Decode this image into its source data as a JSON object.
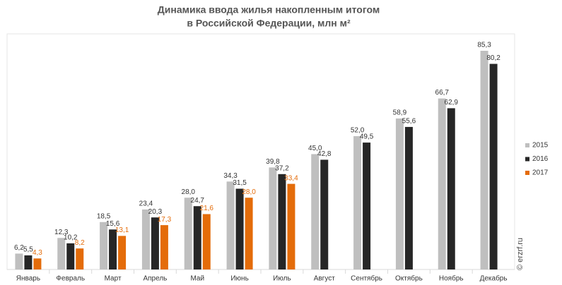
{
  "chart_data": {
    "type": "bar",
    "title": [
      "Динамика ввода жилья накопленным итогом",
      "в Российской Федерации, млн м²"
    ],
    "categories": [
      "Январь",
      "Февраль",
      "Март",
      "Апрель",
      "Май",
      "Июнь",
      "Июль",
      "Август",
      "Сентябрь",
      "Октябрь",
      "Ноябрь",
      "Декабрь"
    ],
    "series": [
      {
        "name": "2015",
        "color": "#bfbfbf",
        "label_color": "#333333",
        "values": [
          6.2,
          12.3,
          18.5,
          23.4,
          28.0,
          34.3,
          39.8,
          45.0,
          52.0,
          58.9,
          66.7,
          85.3
        ],
        "value_labels": [
          "6,2",
          "12,3",
          "18,5",
          "23,4",
          "28,0",
          "34,3",
          "39,8",
          "45,0",
          "52,0",
          "58,9",
          "66,7",
          "85,3"
        ]
      },
      {
        "name": "2016",
        "color": "#262626",
        "label_color": "#333333",
        "values": [
          5.5,
          10.2,
          15.6,
          20.3,
          24.7,
          31.5,
          37.2,
          42.8,
          49.5,
          55.6,
          62.9,
          80.2
        ],
        "value_labels": [
          "5,5",
          "10,2",
          "15,6",
          "20,3",
          "24,7",
          "31,5",
          "37,2",
          "42,8",
          "49,5",
          "55,6",
          "62,9",
          "80,2"
        ]
      },
      {
        "name": "2017",
        "color": "#e46c0a",
        "label_color": "#e46c0a",
        "values": [
          4.3,
          8.2,
          13.1,
          17.3,
          21.6,
          28.0,
          33.4,
          null,
          null,
          null,
          null,
          null
        ],
        "value_labels": [
          "4,3",
          "8,2",
          "13,1",
          "17,3",
          "21,6",
          "28,0",
          "33,4",
          null,
          null,
          null,
          null,
          null
        ]
      }
    ],
    "legend": "right",
    "annotations": [
      "© erzrf.ru"
    ]
  }
}
